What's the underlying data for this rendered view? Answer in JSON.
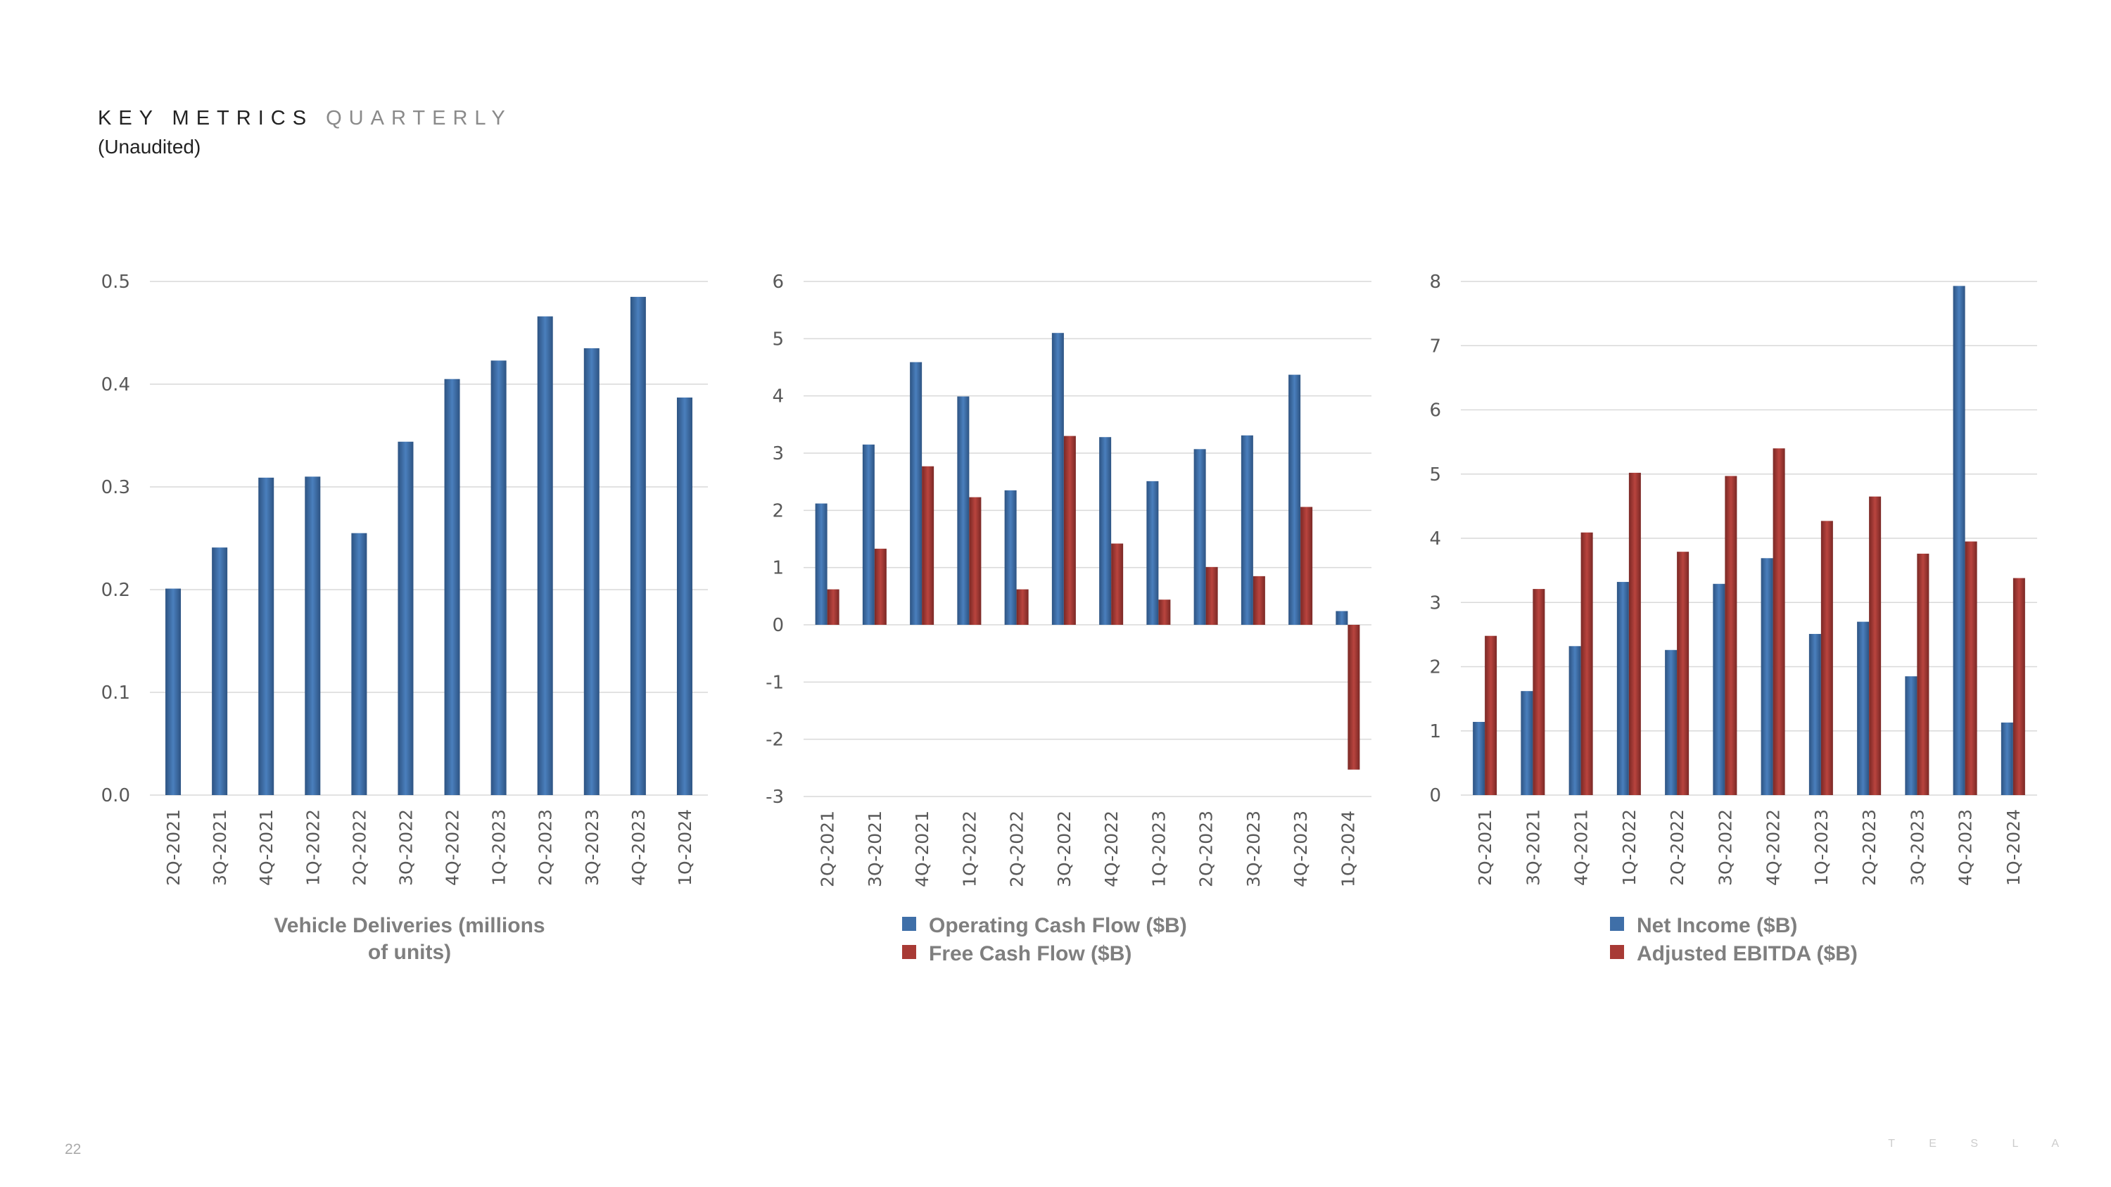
{
  "header": {
    "title_main": "KEY METRICS",
    "title_sub": "QUARTERLY",
    "subtitle": "(Unaudited)"
  },
  "footer": {
    "page_number": "22",
    "logo_text": "TESLA"
  },
  "colors": {
    "blue": "#3f6fa8",
    "blue_dark": "#2d5382",
    "red": "#a83a35",
    "red_dark": "#7a2825",
    "grid": "#d9d9d9",
    "text": "#595959",
    "legend_text": "#7f7f7f"
  },
  "chart_data": [
    {
      "type": "bar",
      "title": "Vehicle Deliveries (millions of units)",
      "title_lines": [
        "Vehicle Deliveries (millions",
        "of units)"
      ],
      "categories": [
        "2Q-2021",
        "3Q-2021",
        "4Q-2021",
        "1Q-2022",
        "2Q-2022",
        "3Q-2022",
        "4Q-2022",
        "1Q-2023",
        "2Q-2023",
        "3Q-2023",
        "4Q-2023",
        "1Q-2024"
      ],
      "ylim": [
        0,
        0.5
      ],
      "yticks": [
        "0.0",
        "0.1",
        "0.2",
        "0.3",
        "0.4",
        "0.5"
      ],
      "grid": true,
      "series": [
        {
          "name": "Vehicle Deliveries (millions of units)",
          "color": "blue",
          "values": [
            0.201,
            0.241,
            0.309,
            0.31,
            0.255,
            0.344,
            0.405,
            0.423,
            0.466,
            0.435,
            0.485,
            0.387
          ]
        }
      ]
    },
    {
      "type": "bar",
      "categories": [
        "2Q-2021",
        "3Q-2021",
        "4Q-2021",
        "1Q-2022",
        "2Q-2022",
        "3Q-2022",
        "4Q-2022",
        "1Q-2023",
        "2Q-2023",
        "3Q-2023",
        "4Q-2023",
        "1Q-2024"
      ],
      "ylim": [
        -3,
        6
      ],
      "yticks": [
        "-3",
        "-2",
        "-1",
        "0",
        "1",
        "2",
        "3",
        "4",
        "5",
        "6"
      ],
      "grid": true,
      "legend": "bottom",
      "series": [
        {
          "name": "Operating Cash Flow ($B)",
          "color": "blue",
          "values": [
            2.12,
            3.15,
            4.59,
            3.99,
            2.35,
            5.1,
            3.28,
            2.51,
            3.07,
            3.31,
            4.37,
            0.24
          ]
        },
        {
          "name": "Free Cash Flow ($B)",
          "color": "red",
          "values": [
            0.62,
            1.33,
            2.77,
            2.23,
            0.62,
            3.3,
            1.42,
            0.44,
            1.01,
            0.85,
            2.06,
            -2.53
          ]
        }
      ]
    },
    {
      "type": "bar",
      "categories": [
        "2Q-2021",
        "3Q-2021",
        "4Q-2021",
        "1Q-2022",
        "2Q-2022",
        "3Q-2022",
        "4Q-2022",
        "1Q-2023",
        "2Q-2023",
        "3Q-2023",
        "4Q-2023",
        "1Q-2024"
      ],
      "ylim": [
        0,
        8
      ],
      "yticks": [
        "0",
        "1",
        "2",
        "3",
        "4",
        "5",
        "6",
        "7",
        "8"
      ],
      "grid": true,
      "legend": "bottom",
      "series": [
        {
          "name": "Net Income ($B)",
          "color": "blue",
          "values": [
            1.14,
            1.62,
            2.32,
            3.32,
            2.26,
            3.29,
            3.69,
            2.51,
            2.7,
            1.85,
            7.93,
            1.13
          ]
        },
        {
          "name": "Adjusted EBITDA ($B)",
          "color": "red",
          "values": [
            2.48,
            3.21,
            4.09,
            5.02,
            3.79,
            4.97,
            5.4,
            4.27,
            4.65,
            3.76,
            3.95,
            3.38
          ]
        }
      ]
    }
  ]
}
